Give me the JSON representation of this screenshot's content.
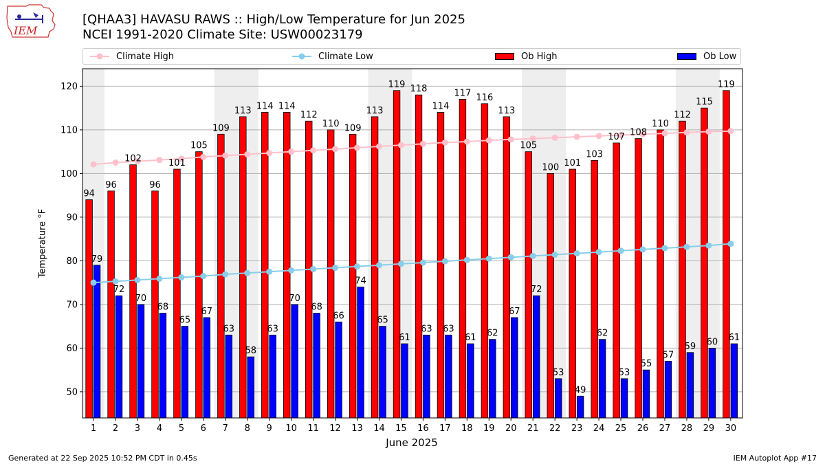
{
  "header": {
    "title_line1": "[QHAA3] HAVASU RAWS :: High/Low Temperature for Jun 2025",
    "title_line2": "NCEI 1991-2020 Climate Site: USW00023179",
    "logo_text": "IEM"
  },
  "legend": {
    "climate_high": "Climate High",
    "climate_low": "Climate Low",
    "ob_high": "Ob High",
    "ob_low": "Ob Low"
  },
  "footer": {
    "generated": "Generated at 22 Sep 2025 10:52 PM CDT in 0.45s",
    "app": "IEM Autoplot App #17"
  },
  "chart_data": {
    "type": "bar",
    "xlabel": "June 2025",
    "ylabel": "Temperature °F",
    "ylim": [
      44,
      124
    ],
    "yticks": [
      50,
      60,
      70,
      80,
      90,
      100,
      110,
      120
    ],
    "categories": [
      "1",
      "2",
      "3",
      "4",
      "5",
      "6",
      "7",
      "8",
      "9",
      "10",
      "11",
      "12",
      "13",
      "14",
      "15",
      "16",
      "17",
      "18",
      "19",
      "20",
      "21",
      "22",
      "23",
      "24",
      "25",
      "26",
      "27",
      "28",
      "29",
      "30"
    ],
    "weekend_days": [
      1,
      7,
      8,
      14,
      15,
      21,
      22,
      28,
      29
    ],
    "grid": true,
    "legend_position": "top",
    "colors": {
      "ob_high": "#ff0000",
      "ob_low": "#0000ff",
      "climate_high": "#ffc0cb",
      "climate_low": "#87ceeb",
      "weekend_band": "#eeeeee",
      "grid": "#b0b0b0"
    },
    "series": [
      {
        "name": "Ob High",
        "kind": "bar",
        "values": [
          94,
          96,
          102,
          96,
          101,
          105,
          109,
          113,
          114,
          114,
          112,
          110,
          109,
          113,
          119,
          118,
          114,
          117,
          116,
          113,
          105,
          100,
          101,
          103,
          107,
          108,
          110,
          112,
          115,
          119
        ]
      },
      {
        "name": "Ob Low",
        "kind": "bar",
        "values": [
          79,
          72,
          70,
          68,
          65,
          67,
          63,
          58,
          63,
          70,
          68,
          66,
          74,
          65,
          61,
          63,
          63,
          61,
          62,
          67,
          72,
          53,
          49,
          62,
          53,
          55,
          57,
          59,
          60,
          61
        ]
      },
      {
        "name": "Climate High",
        "kind": "line",
        "values": [
          102.1,
          102.5,
          102.8,
          103.1,
          103.4,
          103.8,
          104.1,
          104.4,
          104.7,
          105.0,
          105.3,
          105.6,
          105.9,
          106.2,
          106.5,
          106.8,
          107.1,
          107.3,
          107.6,
          107.8,
          108.0,
          108.2,
          108.4,
          108.6,
          108.8,
          109.0,
          109.2,
          109.4,
          109.6,
          109.7
        ]
      },
      {
        "name": "Climate Low",
        "kind": "line",
        "values": [
          75.0,
          75.3,
          75.6,
          75.9,
          76.2,
          76.5,
          76.9,
          77.2,
          77.5,
          77.8,
          78.1,
          78.4,
          78.7,
          79.0,
          79.3,
          79.6,
          79.9,
          80.2,
          80.5,
          80.8,
          81.1,
          81.4,
          81.7,
          82.0,
          82.3,
          82.6,
          82.9,
          83.2,
          83.5,
          83.9
        ]
      }
    ]
  }
}
